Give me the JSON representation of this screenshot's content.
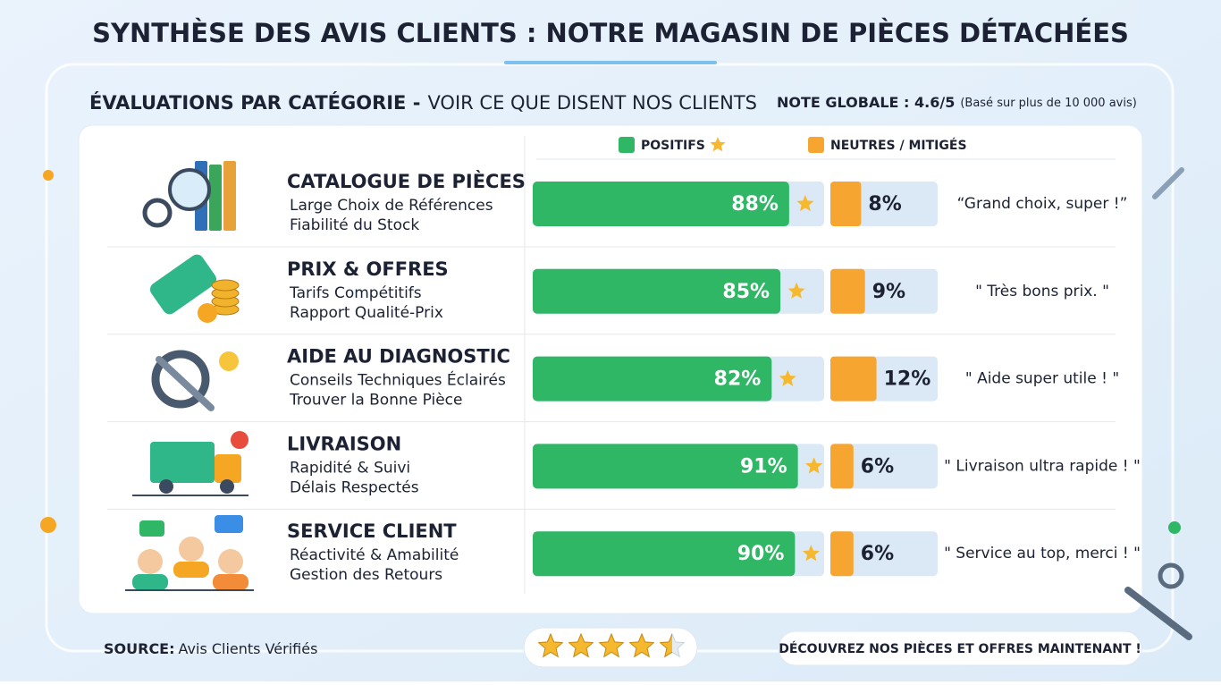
{
  "header": {
    "title": "SYNTHÈSE DES AVIS CLIENTS : NOTRE MAGASIN DE PIÈCES DÉTACHÉES"
  },
  "subtitle": {
    "bold": "ÉVALUATIONS PAR CATÉGORIE -",
    "rest": "VOIR CE QUE DISENT NOS CLIENTS"
  },
  "overall": {
    "label": "NOTE GLOBALE : 4.6/5",
    "note": "(Basé sur plus de 10 000 avis)"
  },
  "chart_data": {
    "type": "bar",
    "categories": [
      "CATALOGUE DE PIÈCES",
      "PRIX & OFFRES",
      "AIDE AU DIAGNOSTIC",
      "LIVRAISON",
      "SERVICE CLIENT"
    ],
    "category_details": [
      [
        "Large Choix de Références",
        "Fiabilité du Stock"
      ],
      [
        "Tarifs Compétitifs",
        "Rapport Qualité-Prix"
      ],
      [
        "Conseils Techniques Éclairés",
        "Trouver la Bonne Pièce"
      ],
      [
        "Rapidité & Suivi",
        "Délais Respectés"
      ],
      [
        "Réactivité & Amabilité",
        "Gestion des Retours"
      ]
    ],
    "series": [
      {
        "name": "POSITIFS",
        "color": "#2fb766",
        "values": [
          88,
          85,
          82,
          91,
          90
        ],
        "value_labels": [
          "88%",
          "85%",
          "82%",
          "91%",
          "90%"
        ]
      },
      {
        "name": "NEUTRES / MITIGÉS",
        "color": "#f7a531",
        "values": [
          8,
          9,
          12,
          6,
          6
        ],
        "value_labels": [
          "8%",
          "9%",
          "12%",
          "6%",
          "6%"
        ]
      }
    ],
    "xlim": [
      0,
      100
    ],
    "quotes": [
      "“Grand choix, super !”",
      "\" Très bons prix. \"",
      "\" Aide super utile ! \"",
      "\" Livraison ultra rapide ! \"",
      "\" Service au top, merci ! \""
    ]
  },
  "footer": {
    "source_label": "SOURCE:",
    "source": "Avis Clients Vérifiés",
    "rating": 4.5,
    "cta": "DÉCOUVREZ NOS PIÈCES ET OFFRES MAINTENANT !"
  }
}
